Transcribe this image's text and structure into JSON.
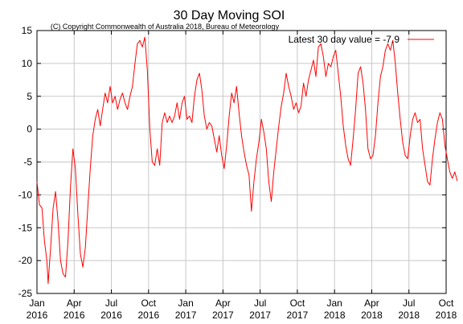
{
  "chart_data": {
    "type": "line",
    "title": "30 Day Moving SOI",
    "subtitle": "(C) Copyright Commonwealth of Australia 2018, Bureau of Meteorology",
    "xlabel": "",
    "ylabel": "",
    "ylim": [
      -25,
      15
    ],
    "y_ticks": [
      -25,
      -20,
      -15,
      -10,
      -5,
      0,
      5,
      10,
      15
    ],
    "x_ticks": [
      {
        "month": "Jan",
        "year": "2016"
      },
      {
        "month": "Apr",
        "year": "2016"
      },
      {
        "month": "Jul",
        "year": "2016"
      },
      {
        "month": "Oct",
        "year": "2016"
      },
      {
        "month": "Jan",
        "year": "2017"
      },
      {
        "month": "Apr",
        "year": "2017"
      },
      {
        "month": "Jul",
        "year": "2017"
      },
      {
        "month": "Oct",
        "year": "2017"
      },
      {
        "month": "Jan",
        "year": "2018"
      },
      {
        "month": "Apr",
        "year": "2018"
      },
      {
        "month": "Jul",
        "year": "2018"
      },
      {
        "month": "Oct",
        "year": "2018"
      }
    ],
    "grid": true,
    "legend_position": "top-right",
    "series": [
      {
        "name": "Latest 30 day value = -7.9",
        "color": "#ff0000",
        "x_unit": "months since Jan 2016",
        "points": [
          [
            0.0,
            -8.0
          ],
          [
            0.2,
            -11.5
          ],
          [
            0.4,
            -12.0
          ],
          [
            0.6,
            -17.0
          ],
          [
            0.8,
            -20.0
          ],
          [
            0.9,
            -23.5
          ],
          [
            1.1,
            -18.0
          ],
          [
            1.3,
            -12.0
          ],
          [
            1.5,
            -9.5
          ],
          [
            1.7,
            -14.0
          ],
          [
            1.9,
            -20.0
          ],
          [
            2.1,
            -22.0
          ],
          [
            2.3,
            -22.5
          ],
          [
            2.5,
            -17.0
          ],
          [
            2.7,
            -9.0
          ],
          [
            2.9,
            -3.0
          ],
          [
            3.1,
            -6.0
          ],
          [
            3.3,
            -13.0
          ],
          [
            3.5,
            -19.0
          ],
          [
            3.7,
            -21.0
          ],
          [
            3.9,
            -18.0
          ],
          [
            4.1,
            -12.0
          ],
          [
            4.3,
            -6.0
          ],
          [
            4.5,
            -1.0
          ],
          [
            4.7,
            1.5
          ],
          [
            4.9,
            3.0
          ],
          [
            5.1,
            0.5
          ],
          [
            5.3,
            3.0
          ],
          [
            5.5,
            5.5
          ],
          [
            5.7,
            4.0
          ],
          [
            5.9,
            6.5
          ],
          [
            6.1,
            4.0
          ],
          [
            6.3,
            5.0
          ],
          [
            6.5,
            3.0
          ],
          [
            6.7,
            4.5
          ],
          [
            6.9,
            5.5
          ],
          [
            7.1,
            4.0
          ],
          [
            7.3,
            3.0
          ],
          [
            7.5,
            5.0
          ],
          [
            7.7,
            6.5
          ],
          [
            7.9,
            10.0
          ],
          [
            8.1,
            13.0
          ],
          [
            8.3,
            13.5
          ],
          [
            8.5,
            12.5
          ],
          [
            8.7,
            14.0
          ],
          [
            8.9,
            9.0
          ],
          [
            9.1,
            0.0
          ],
          [
            9.3,
            -5.0
          ],
          [
            9.5,
            -5.5
          ],
          [
            9.7,
            -3.0
          ],
          [
            9.9,
            -5.5
          ],
          [
            10.1,
            1.0
          ],
          [
            10.3,
            2.5
          ],
          [
            10.5,
            1.0
          ],
          [
            10.7,
            2.0
          ],
          [
            10.9,
            1.0
          ],
          [
            11.1,
            2.0
          ],
          [
            11.3,
            4.0
          ],
          [
            11.5,
            1.5
          ],
          [
            11.7,
            4.0
          ],
          [
            11.9,
            5.0
          ],
          [
            12.1,
            1.5
          ],
          [
            12.3,
            2.0
          ],
          [
            12.5,
            1.0
          ],
          [
            12.7,
            5.0
          ],
          [
            12.9,
            7.5
          ],
          [
            13.1,
            8.5
          ],
          [
            13.3,
            6.0
          ],
          [
            13.5,
            2.0
          ],
          [
            13.7,
            0.0
          ],
          [
            13.9,
            1.0
          ],
          [
            14.1,
            0.5
          ],
          [
            14.3,
            -1.5
          ],
          [
            14.5,
            -3.5
          ],
          [
            14.7,
            -1.0
          ],
          [
            14.9,
            -4.0
          ],
          [
            15.1,
            -6.0
          ],
          [
            15.3,
            -2.5
          ],
          [
            15.5,
            2.0
          ],
          [
            15.7,
            5.5
          ],
          [
            15.9,
            4.0
          ],
          [
            16.1,
            6.5
          ],
          [
            16.3,
            2.5
          ],
          [
            16.5,
            -1.0
          ],
          [
            16.7,
            -3.5
          ],
          [
            16.9,
            -5.5
          ],
          [
            17.1,
            -7.0
          ],
          [
            17.3,
            -12.5
          ],
          [
            17.5,
            -8.0
          ],
          [
            17.7,
            -4.5
          ],
          [
            17.9,
            -2.0
          ],
          [
            18.1,
            1.5
          ],
          [
            18.3,
            -0.5
          ],
          [
            18.5,
            -3.0
          ],
          [
            18.7,
            -8.0
          ],
          [
            18.9,
            -11.0
          ],
          [
            19.1,
            -6.5
          ],
          [
            19.3,
            -3.0
          ],
          [
            19.5,
            0.5
          ],
          [
            19.7,
            3.5
          ],
          [
            19.9,
            5.5
          ],
          [
            20.1,
            8.5
          ],
          [
            20.3,
            6.5
          ],
          [
            20.5,
            5.0
          ],
          [
            20.7,
            3.0
          ],
          [
            20.9,
            4.0
          ],
          [
            21.1,
            2.5
          ],
          [
            21.3,
            3.5
          ],
          [
            21.5,
            7.0
          ],
          [
            21.7,
            5.0
          ],
          [
            21.9,
            7.5
          ],
          [
            22.1,
            9.0
          ],
          [
            22.3,
            10.5
          ],
          [
            22.5,
            8.0
          ],
          [
            22.7,
            12.5
          ],
          [
            22.9,
            13.0
          ],
          [
            23.1,
            11.0
          ],
          [
            23.3,
            8.0
          ],
          [
            23.5,
            10.0
          ],
          [
            23.7,
            9.5
          ],
          [
            23.9,
            11.0
          ],
          [
            24.1,
            12.0
          ],
          [
            24.3,
            8.5
          ],
          [
            24.5,
            5.0
          ],
          [
            24.7,
            0.5
          ],
          [
            24.9,
            -2.5
          ],
          [
            25.1,
            -4.5
          ],
          [
            25.3,
            -5.5
          ],
          [
            25.5,
            -1.5
          ],
          [
            25.7,
            3.0
          ],
          [
            25.9,
            8.5
          ],
          [
            26.1,
            9.5
          ],
          [
            26.3,
            7.0
          ],
          [
            26.5,
            3.0
          ],
          [
            26.7,
            -3.0
          ],
          [
            26.9,
            -4.5
          ],
          [
            27.1,
            -4.0
          ],
          [
            27.3,
            -1.0
          ],
          [
            27.5,
            4.0
          ],
          [
            27.7,
            8.0
          ],
          [
            27.9,
            9.5
          ],
          [
            28.1,
            12.0
          ],
          [
            28.3,
            13.0
          ],
          [
            28.5,
            12.0
          ],
          [
            28.7,
            13.5
          ],
          [
            28.9,
            10.0
          ],
          [
            29.1,
            5.5
          ],
          [
            29.3,
            1.5
          ],
          [
            29.5,
            -2.0
          ],
          [
            29.7,
            -4.0
          ],
          [
            29.9,
            -4.5
          ],
          [
            30.1,
            -1.0
          ],
          [
            30.3,
            1.5
          ],
          [
            30.5,
            2.5
          ],
          [
            30.7,
            1.0
          ],
          [
            30.9,
            1.5
          ],
          [
            31.1,
            -3.0
          ],
          [
            31.3,
            -5.5
          ],
          [
            31.5,
            -8.0
          ],
          [
            31.7,
            -8.5
          ],
          [
            31.9,
            -4.5
          ],
          [
            32.1,
            -1.5
          ],
          [
            32.3,
            1.0
          ],
          [
            32.5,
            2.5
          ],
          [
            32.7,
            1.5
          ],
          [
            32.9,
            -2.5
          ],
          [
            33.1,
            -4.5
          ],
          [
            33.3,
            -6.5
          ],
          [
            33.5,
            -7.5
          ],
          [
            33.7,
            -6.5
          ],
          [
            33.9,
            -7.9
          ]
        ]
      }
    ]
  }
}
